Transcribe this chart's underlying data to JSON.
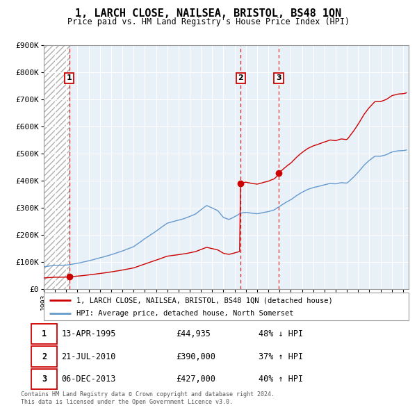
{
  "title": "1, LARCH CLOSE, NAILSEA, BRISTOL, BS48 1QN",
  "subtitle": "Price paid vs. HM Land Registry's House Price Index (HPI)",
  "hpi_label": "HPI: Average price, detached house, North Somerset",
  "property_label": "1, LARCH CLOSE, NAILSEA, BRISTOL, BS48 1QN (detached house)",
  "footnote": "Contains HM Land Registry data © Crown copyright and database right 2024.\nThis data is licensed under the Open Government Licence v3.0.",
  "sale_dates_num": [
    1995.28,
    2010.55,
    2013.92
  ],
  "sale_prices": [
    44935,
    390000,
    427000
  ],
  "sale_labels": [
    "1",
    "2",
    "3"
  ],
  "sale_info": [
    {
      "num": "1",
      "date": "13-APR-1995",
      "price": "£44,935",
      "hpi": "48% ↓ HPI"
    },
    {
      "num": "2",
      "date": "21-JUL-2010",
      "price": "£390,000",
      "hpi": "37% ↑ HPI"
    },
    {
      "num": "3",
      "date": "06-DEC-2013",
      "price": "£427,000",
      "hpi": "40% ↑ HPI"
    }
  ],
  "property_color": "#cc0000",
  "hpi_color": "#6699cc",
  "ylim": [
    0,
    900000
  ],
  "xmin": 1993.0,
  "xmax": 2025.5
}
